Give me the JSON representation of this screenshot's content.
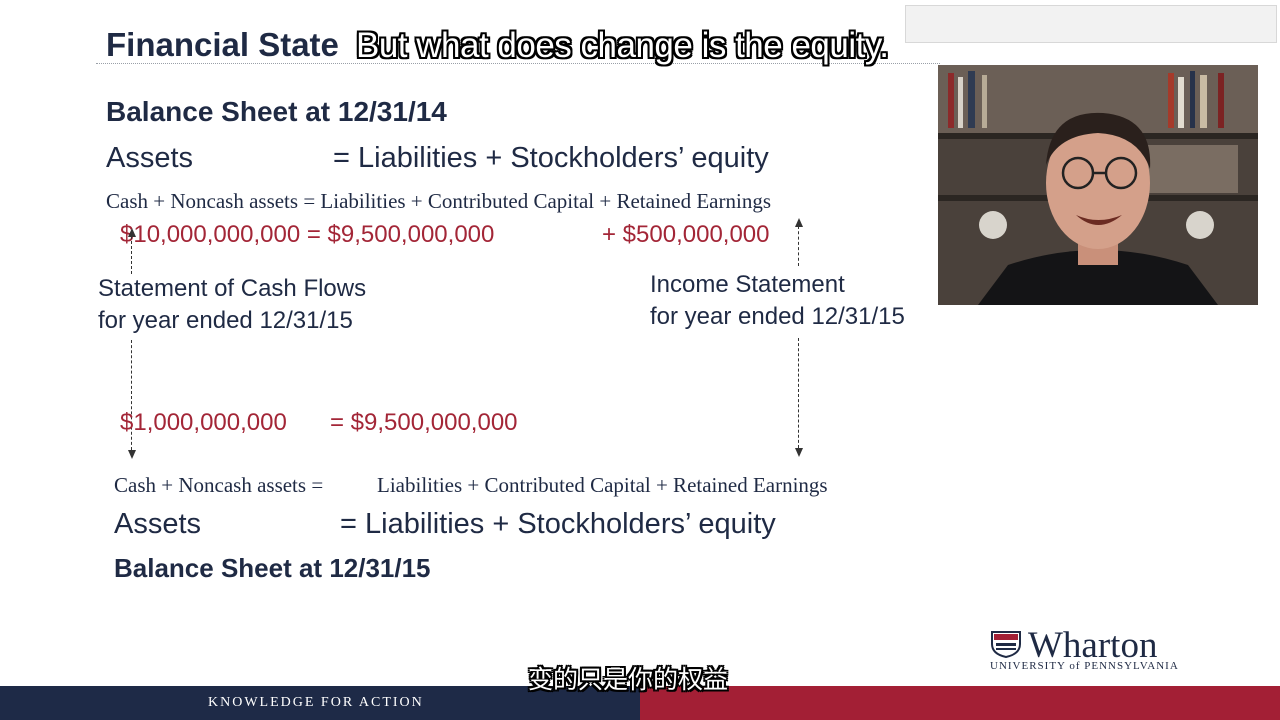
{
  "slide": {
    "title": "Financial State",
    "caption_en": "But what does change is the equity.",
    "caption_zh": "变的只是你的权益",
    "top": {
      "heading": "Balance Sheet at 12/31/14",
      "assets": "Assets",
      "equals_phrase": "= Liabilities + Stockholders’ equity",
      "detail": "Cash + Noncash assets = Liabilities + Contributed Capital + Retained Earnings",
      "money_left": "$10,000,000,000 = $9,500,000,000",
      "money_right": "+ $500,000,000"
    },
    "cash_flows": {
      "line1": "Statement of Cash Flows",
      "line2": "for year ended 12/31/15"
    },
    "income": {
      "line1": "Income Statement",
      "line2": "for year ended 12/31/15"
    },
    "mid_money": {
      "left": "$1,000,000,000",
      "right": "= $9,500,000,000"
    },
    "bottom": {
      "detail_left": "Cash + Noncash assets  =",
      "detail_right": "Liabilities + Contributed Capital + Retained Earnings",
      "assets": "Assets",
      "equals_phrase": "= Liabilities + Stockholders’ equity",
      "heading": "Balance Sheet at 12/31/15"
    }
  },
  "footer": {
    "tagline": "KNOWLEDGE FOR ACTION"
  },
  "logo": {
    "name": "Wharton",
    "sub": "UNIVERSITY of PENNSYLVANIA"
  },
  "colors": {
    "navy": "#1e2a47",
    "crimson": "#a31f35",
    "money": "#a32637"
  }
}
